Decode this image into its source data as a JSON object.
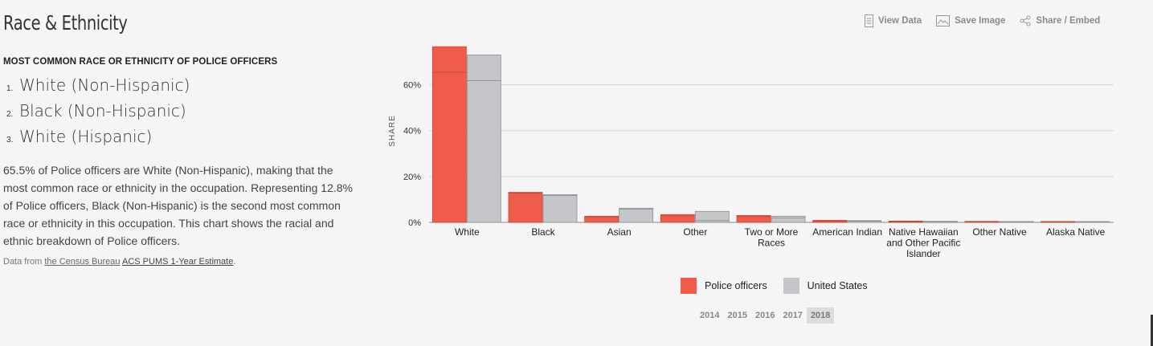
{
  "title": "Race & Ethnicity",
  "subtitle": "MOST COMMON RACE OR ETHNICITY OF POLICE OFFICERS",
  "ranking": [
    {
      "num": "1.",
      "label": "White (Non-Hispanic)"
    },
    {
      "num": "2.",
      "label": "Black (Non-Hispanic)"
    },
    {
      "num": "3.",
      "label": "White (Hispanic)"
    }
  ],
  "description": "65.5% of Police officers are White (Non-Hispanic), making that the most common race or ethnicity in the occupation. Representing 12.8% of Police officers, Black (Non-Hispanic) is the second most common race or ethnicity in this occupation. This chart shows the racial and ethnic breakdown of Police officers.",
  "source": {
    "prefix": "Data from ",
    "org": "the Census Bureau",
    "dataset": "ACS PUMS 1-Year Estimate",
    "suffix": "."
  },
  "toolbar": {
    "view_data": "View Data",
    "save_image": "Save Image",
    "share": "Share / Embed"
  },
  "years": [
    "2014",
    "2015",
    "2016",
    "2017",
    "2018"
  ],
  "active_year": "2018",
  "chart_data": {
    "type": "bar",
    "stacked_within_series": true,
    "ylabel": "SHARE",
    "ylim": [
      0,
      80
    ],
    "yticks": [
      0,
      20,
      40,
      60
    ],
    "ytick_labels": [
      "0%",
      "20%",
      "40%",
      "60%"
    ],
    "grid": true,
    "legend_position": "bottom",
    "categories": [
      [
        "White"
      ],
      [
        "Black"
      ],
      [
        "Asian"
      ],
      [
        "Other"
      ],
      [
        "Two or More",
        "Races"
      ],
      [
        "American Indian"
      ],
      [
        "Native Hawaiian",
        "and Other Pacific",
        "Islander"
      ],
      [
        "Other Native"
      ],
      [
        "Alaska Native"
      ]
    ],
    "series": [
      {
        "name": "Police officers",
        "color": "#ef5d4a",
        "segments": [
          [
            65.5,
            11.1
          ],
          [
            12.8,
            0.3
          ],
          [
            2.4,
            0.2
          ],
          [
            2.8,
            0.6
          ],
          [
            2.5,
            0.5
          ],
          [
            0.6,
            0.2
          ],
          [
            0.3,
            0.05
          ],
          [
            0.15,
            0.05
          ],
          [
            0.1,
            0.02
          ]
        ]
      },
      {
        "name": "United States",
        "color": "#c5c6ca",
        "segments": [
          [
            61.8,
            11.2
          ],
          [
            11.7,
            0.4
          ],
          [
            5.8,
            0.4
          ],
          [
            0.8,
            4.0
          ],
          [
            1.9,
            0.8
          ],
          [
            0.5,
            0.2
          ],
          [
            0.2,
            0.05
          ],
          [
            0.1,
            0.05
          ],
          [
            0.05,
            0.02
          ]
        ]
      }
    ]
  }
}
